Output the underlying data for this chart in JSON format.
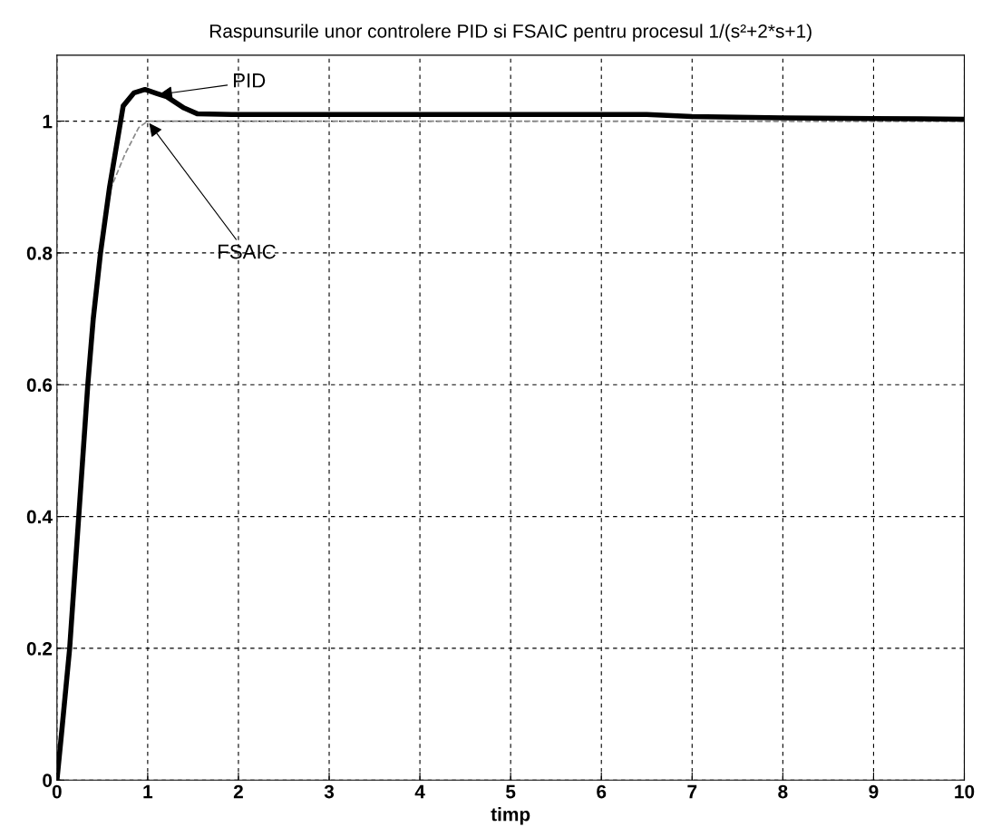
{
  "chart_data": {
    "type": "line",
    "title": "Raspunsurile unor controlere PID si FSAIC pentru procesul 1/(s²+2*s+1)",
    "xlabel": "timp",
    "xlim": [
      0,
      10
    ],
    "xticks": [
      0,
      1,
      2,
      3,
      4,
      5,
      6,
      7,
      8,
      9,
      10
    ],
    "ylim": [
      0,
      1.1
    ],
    "yticks": [
      0,
      0.2,
      0.4,
      0.6,
      0.8,
      1
    ],
    "grid": true,
    "legend": false,
    "series": [
      {
        "color": "#888888",
        "line_style": "dashed",
        "x": [
          0,
          0.05,
          0.14,
          0.24,
          0.34,
          0.42,
          0.5,
          0.6,
          0.75,
          0.9,
          1.0,
          2,
          4,
          6,
          8,
          10
        ],
        "values": [
          0,
          0.07,
          0.2,
          0.4,
          0.6,
          0.73,
          0.82,
          0.9,
          0.95,
          0.99,
          1.0,
          1.0,
          1.0,
          1.0,
          1.0,
          1.0
        ]
      },
      {
        "color": "#000000",
        "line_style": "solid",
        "x": [
          0,
          0.05,
          0.14,
          0.24,
          0.34,
          0.4,
          0.48,
          0.58,
          0.73,
          0.85,
          0.97,
          1.1,
          1.21,
          1.4,
          1.55,
          2,
          3,
          4,
          5,
          6,
          6.5,
          7,
          8,
          9,
          10
        ],
        "values": [
          0,
          0.07,
          0.2,
          0.4,
          0.6,
          0.7,
          0.8,
          0.9,
          1.023,
          1.043,
          1.048,
          1.042,
          1.037,
          1.02,
          1.011,
          1.01,
          1.01,
          1.01,
          1.01,
          1.01,
          1.01,
          1.007,
          1.005,
          1.004,
          1.003
        ]
      }
    ],
    "annotations": [
      {
        "text": "PID",
        "x": 1.1,
        "y": 1.04
      },
      {
        "text": "FSAIC",
        "x": 1.0,
        "y": 1.0
      }
    ]
  }
}
